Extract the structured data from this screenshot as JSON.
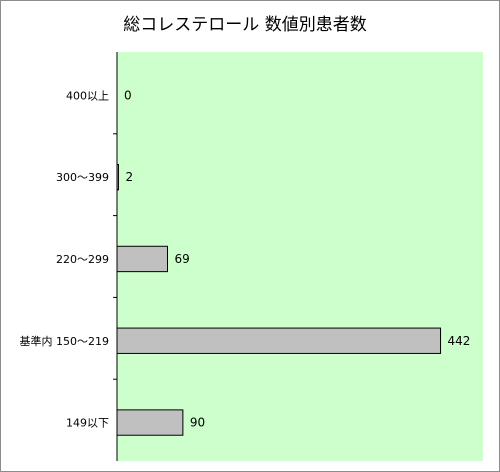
{
  "chart_data": {
    "type": "bar",
    "orientation": "horizontal",
    "title": "総コレステロール 数値別患者数",
    "categories": [
      "400以上",
      "300～399",
      "220～299",
      "基準内 150～219",
      "149以下"
    ],
    "values": [
      0,
      2,
      69,
      442,
      90
    ],
    "xlim": [
      0,
      500
    ],
    "xlabel": "",
    "ylabel": "",
    "grid": false,
    "legend": false,
    "colors": {
      "plot_background": "#ccffcc",
      "bar_fill": "#c0c0c0",
      "bar_stroke": "#000000",
      "frame": "#8c8c8c"
    }
  }
}
